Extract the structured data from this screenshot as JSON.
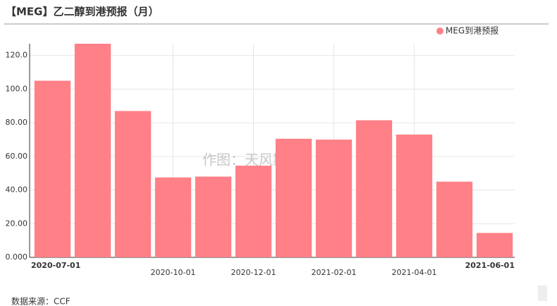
{
  "chart_data": {
    "type": "bar",
    "title": "【MEG】乙二醇到港预报（月）",
    "categories": [
      "2020-07-01",
      null,
      null,
      "2020-10-01",
      null,
      "2020-12-01",
      null,
      "2021-02-01",
      null,
      "2021-04-01",
      null,
      "2021-06-01"
    ],
    "series": [
      {
        "name": "MEG到港预报",
        "color": "#ff8087",
        "values": [
          105,
          127,
          87,
          47.5,
          48,
          54.5,
          70.5,
          70,
          81.5,
          73,
          45,
          14.5
        ]
      }
    ],
    "ylim": [
      0,
      127
    ],
    "yticks": [
      {
        "value": 0,
        "label": "0.000"
      },
      {
        "value": 20,
        "label": "20.00"
      },
      {
        "value": 40,
        "label": "40.00"
      },
      {
        "value": 60,
        "label": "60.00"
      },
      {
        "value": 80,
        "label": "80.00"
      },
      {
        "value": 100,
        "label": "100.0"
      },
      {
        "value": 120,
        "label": "120.0"
      }
    ],
    "grid": true,
    "legend": "top-right",
    "watermark": "作图：天风期货",
    "source": "数据来源：CCF"
  }
}
